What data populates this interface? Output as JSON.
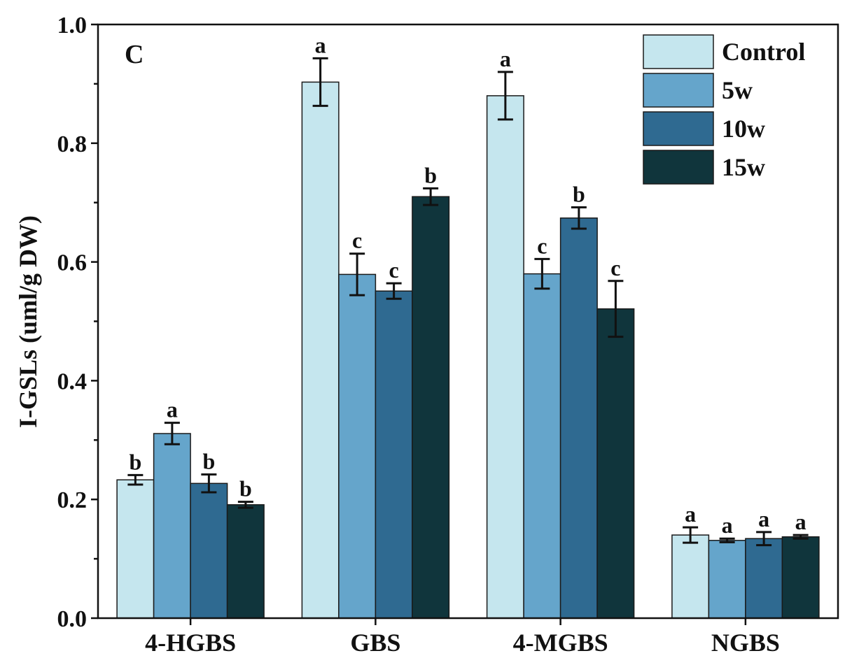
{
  "chart_data": {
    "type": "bar",
    "panel_label": "C",
    "ylabel": "I-GSLs (uml/g DW)",
    "xlabel": "",
    "ylim": [
      0,
      1.0
    ],
    "yticks": [
      "0.0",
      "0.2",
      "0.4",
      "0.6",
      "0.8",
      "1.0"
    ],
    "grid": false,
    "legend_position": "top-right",
    "categories": [
      "4-HGBS",
      "GBS",
      "4-MGBS",
      "NGBS"
    ],
    "series": [
      {
        "name": "Control",
        "color": "#c5e6ee",
        "values": [
          0.233,
          0.903,
          0.88,
          0.14
        ],
        "errors": [
          0.008,
          0.04,
          0.04,
          0.013
        ],
        "letters": [
          "b",
          "a",
          "a",
          "a"
        ]
      },
      {
        "name": "5w",
        "color": "#65a5cb",
        "values": [
          0.311,
          0.579,
          0.58,
          0.131
        ],
        "errors": [
          0.018,
          0.035,
          0.025,
          0.003
        ],
        "letters": [
          "a",
          "c",
          "c",
          "a"
        ]
      },
      {
        "name": "10w",
        "color": "#2f6a91",
        "values": [
          0.227,
          0.551,
          0.674,
          0.134
        ],
        "errors": [
          0.015,
          0.013,
          0.018,
          0.011
        ],
        "letters": [
          "b",
          "c",
          "b",
          "a"
        ]
      },
      {
        "name": "15w",
        "color": "#10353c",
        "values": [
          0.191,
          0.71,
          0.521,
          0.137
        ],
        "errors": [
          0.005,
          0.014,
          0.047,
          0.003
        ],
        "letters": [
          "b",
          "b",
          "c",
          "a"
        ]
      }
    ]
  }
}
